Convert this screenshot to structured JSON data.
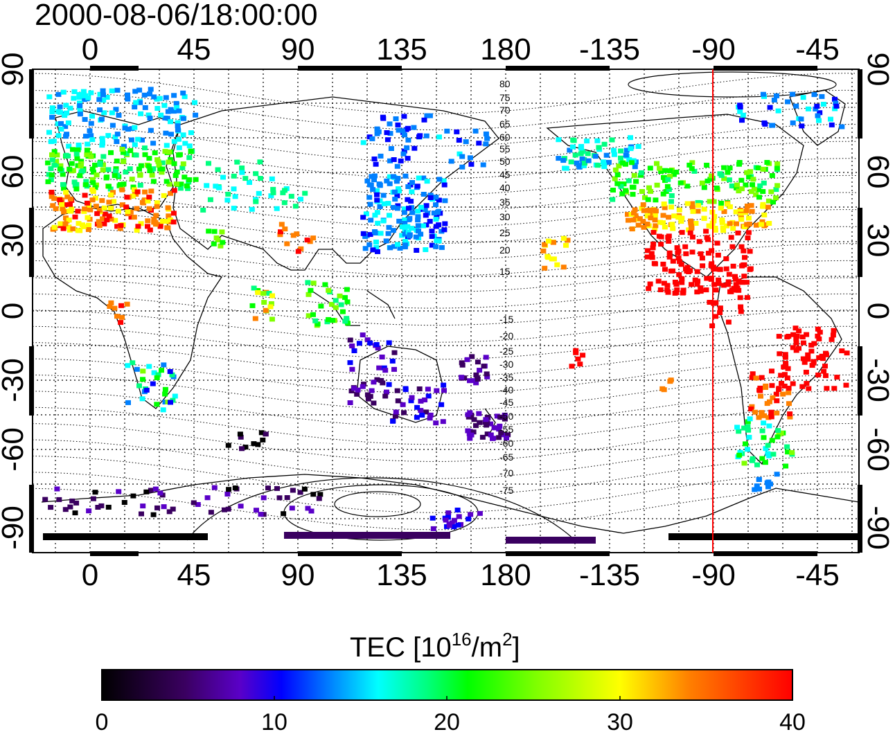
{
  "title": "2000-08-06/18:00:00",
  "map": {
    "lon_ticks": [
      "0",
      "45",
      "90",
      "135",
      "180",
      "-135",
      "-90",
      "-45"
    ],
    "lat_ticks": [
      "90",
      "60",
      "30",
      "0",
      "-30",
      "-60",
      "-90"
    ],
    "meridian_line": {
      "longitude_label": "-90",
      "color": "#ff0000"
    },
    "mlat_contour_labels_north": [
      "80",
      "75",
      "70",
      "65",
      "60",
      "55",
      "50",
      "45",
      "40",
      "35",
      "30",
      "25",
      "20",
      "15"
    ],
    "mlat_contour_labels_south": [
      "-15",
      "-20",
      "-25",
      "-30",
      "-35",
      "-40",
      "-45",
      "-50",
      "-55",
      "-60",
      "-65",
      "-70",
      "-75"
    ]
  },
  "colorbar": {
    "title_main": "TEC  [10",
    "title_sup": "16",
    "title_mid": "/m",
    "title_sup2": "2",
    "title_end": "]",
    "tick_labels": [
      "0",
      "10",
      "20",
      "30",
      "40"
    ],
    "range": [
      0,
      40
    ],
    "colors": [
      "#000000",
      "#3a0060",
      "#5a00c8",
      "#0000ff",
      "#0080ff",
      "#00ffff",
      "#00ff80",
      "#00ff00",
      "#80ff00",
      "#ffff00",
      "#ff8000",
      "#ff0000"
    ]
  }
}
